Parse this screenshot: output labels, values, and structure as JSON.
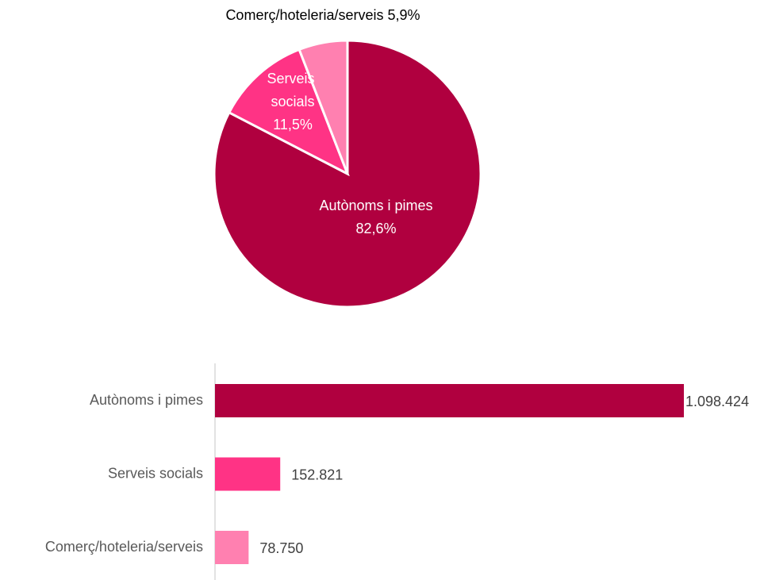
{
  "chart_data": [
    {
      "type": "pie",
      "categories": [
        "Autònoms i pimes",
        "Serveis socials",
        "Comerç/hoteleria/serveis"
      ],
      "values": [
        82.6,
        11.5,
        5.9
      ],
      "value_labels": [
        "82,6%",
        "11,5%",
        "5,9%"
      ],
      "colors": [
        "#b0003f",
        "#ff3385",
        "#ff80b0"
      ]
    },
    {
      "type": "hbar",
      "categories": [
        "Autònoms i pimes",
        "Serveis socials",
        "Comerç/hoteleria/serveis"
      ],
      "values": [
        1098424,
        152821,
        78750
      ],
      "value_labels": [
        "1.098.424",
        "152.821",
        "78.750"
      ],
      "colors": [
        "#b0003f",
        "#ff3385",
        "#ff80b0"
      ]
    }
  ]
}
